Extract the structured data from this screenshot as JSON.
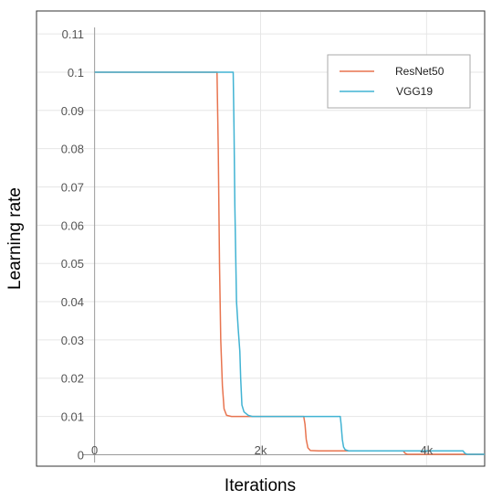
{
  "chart_data": {
    "type": "line",
    "title": "",
    "xlabel": "Iterations",
    "ylabel": "Learning rate",
    "xlim": [
      -700,
      4700
    ],
    "ylim": [
      -0.003,
      0.116
    ],
    "x_ticks": [
      0,
      2000,
      4000
    ],
    "x_tick_labels": [
      "0",
      "2k",
      "4k"
    ],
    "y_ticks": [
      0,
      0.01,
      0.02,
      0.03,
      0.04,
      0.05,
      0.06,
      0.07,
      0.08,
      0.09,
      0.1,
      0.11
    ],
    "y_tick_labels": [
      "0",
      "0.01",
      "0.02",
      "0.03",
      "0.04",
      "0.05",
      "0.06",
      "0.07",
      "0.08",
      "0.09",
      "0.1",
      "0.11"
    ],
    "grid": true,
    "legend_position": "top-right",
    "series": [
      {
        "name": "ResNet50",
        "color": "#e8744f",
        "points": [
          [
            0,
            0.1
          ],
          [
            1475,
            0.1
          ],
          [
            1490,
            0.08
          ],
          [
            1505,
            0.05
          ],
          [
            1520,
            0.03
          ],
          [
            1540,
            0.018
          ],
          [
            1560,
            0.012
          ],
          [
            1590,
            0.0103
          ],
          [
            1650,
            0.01
          ],
          [
            2520,
            0.01
          ],
          [
            2535,
            0.008
          ],
          [
            2550,
            0.004
          ],
          [
            2570,
            0.0018
          ],
          [
            2600,
            0.0011
          ],
          [
            2700,
            0.001
          ],
          [
            3720,
            0.001
          ],
          [
            3740,
            0.0004
          ],
          [
            3770,
            0.0001
          ],
          [
            3800,
            0.0001
          ],
          [
            4700,
            0.0001
          ]
        ]
      },
      {
        "name": "VGG19",
        "color": "#41b3d3",
        "points": [
          [
            0,
            0.1
          ],
          [
            1670,
            0.1
          ],
          [
            1680,
            0.085
          ],
          [
            1690,
            0.065
          ],
          [
            1710,
            0.04
          ],
          [
            1730,
            0.033
          ],
          [
            1750,
            0.027
          ],
          [
            1760,
            0.02
          ],
          [
            1775,
            0.013
          ],
          [
            1800,
            0.0112
          ],
          [
            1850,
            0.0103
          ],
          [
            1900,
            0.01
          ],
          [
            2960,
            0.01
          ],
          [
            2970,
            0.008
          ],
          [
            2985,
            0.004
          ],
          [
            3000,
            0.002
          ],
          [
            3020,
            0.0013
          ],
          [
            3060,
            0.001
          ],
          [
            4440,
            0.001
          ],
          [
            4460,
            0.0004
          ],
          [
            4490,
            0.0001
          ],
          [
            4700,
            0.0001
          ]
        ]
      }
    ]
  }
}
